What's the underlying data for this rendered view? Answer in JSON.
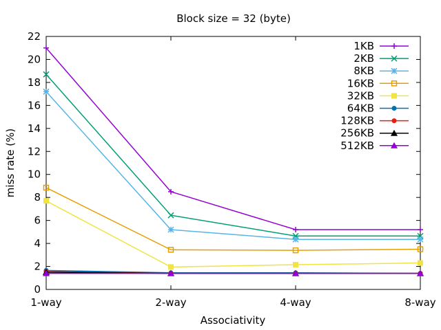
{
  "chart_data": {
    "type": "line",
    "title": "Block size = 32 (byte)",
    "xlabel": "Associativity",
    "ylabel": "miss rate (%)",
    "categories": [
      "1-way",
      "2-way",
      "4-way",
      "8-way"
    ],
    "ylim": [
      0,
      22
    ],
    "yticks": [
      0,
      2,
      4,
      6,
      8,
      10,
      12,
      14,
      16,
      18,
      20,
      22
    ],
    "grid": false,
    "legend_position": "top-right",
    "series": [
      {
        "name": "1KB",
        "color": "#9400d3",
        "marker": "plus",
        "values": [
          21.0,
          8.5,
          5.2,
          5.2
        ]
      },
      {
        "name": "2KB",
        "color": "#009e73",
        "marker": "cross",
        "values": [
          18.7,
          6.45,
          4.65,
          4.65
        ]
      },
      {
        "name": "8KB",
        "color": "#56b4e9",
        "marker": "star",
        "values": [
          17.2,
          5.2,
          4.35,
          4.35
        ]
      },
      {
        "name": "16KB",
        "color": "#e69f00",
        "marker": "square",
        "values": [
          8.85,
          3.45,
          3.4,
          3.5
        ]
      },
      {
        "name": "32KB",
        "color": "#f0e442",
        "marker": "filled-square",
        "values": [
          7.7,
          1.95,
          2.15,
          2.3
        ]
      },
      {
        "name": "64KB",
        "color": "#0072b2",
        "marker": "filled-circle",
        "values": [
          1.65,
          1.45,
          1.45,
          1.4
        ]
      },
      {
        "name": "128KB",
        "color": "#e51e10",
        "marker": "filled-circle",
        "values": [
          1.55,
          1.4,
          1.4,
          1.4
        ]
      },
      {
        "name": "256KB",
        "color": "#000000",
        "marker": "filled-triangle",
        "values": [
          1.5,
          1.4,
          1.4,
          1.4
        ]
      },
      {
        "name": "512KB",
        "color": "#9400d3",
        "marker": "filled-triangle",
        "values": [
          1.4,
          1.4,
          1.4,
          1.4
        ]
      }
    ]
  }
}
